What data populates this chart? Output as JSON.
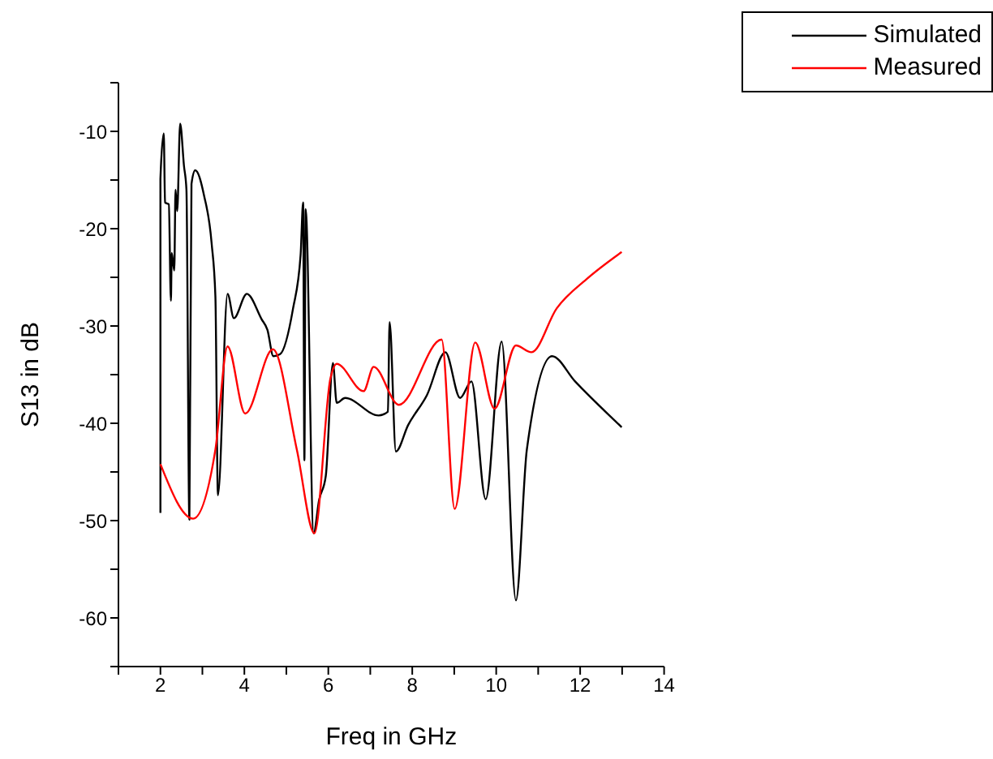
{
  "chart_data": {
    "type": "line",
    "xlabel": "Freq in GHz",
    "ylabel": "S13 in dB",
    "xlim": [
      1,
      14
    ],
    "ylim": [
      -65,
      -5
    ],
    "xticks": [
      {
        "value": 1,
        "label": null
      },
      2,
      {
        "value": 3,
        "label": null
      },
      4,
      {
        "value": 5,
        "label": null
      },
      6,
      {
        "value": 7,
        "label": null
      },
      8,
      {
        "value": 9,
        "label": null
      },
      10,
      {
        "value": 11,
        "label": null
      },
      12,
      {
        "value": 13,
        "label": null
      },
      14
    ],
    "yticks": [
      {
        "value": -65,
        "label": null
      },
      -60,
      {
        "value": -55,
        "label": null
      },
      -50,
      {
        "value": -45,
        "label": null
      },
      -40,
      {
        "value": -35,
        "label": null
      },
      -30,
      {
        "value": -25,
        "label": null
      },
      -20,
      {
        "value": -15,
        "label": null
      },
      -10,
      {
        "value": -5,
        "label": null
      }
    ],
    "legend": "top right",
    "series": [
      {
        "name": "Simulated",
        "color": "#000000",
        "x": [
          2,
          2,
          2.08,
          2.11,
          2.2,
          2.25,
          2.27,
          2.33,
          2.36,
          2.4,
          2.47,
          2.56,
          2.62,
          2.69,
          2.74,
          2.83,
          3.04,
          3.22,
          3.31,
          3.37,
          3.6,
          3.75,
          4.06,
          4.41,
          4.55,
          4.69,
          4.85,
          5.16,
          5.34,
          5.4,
          5.43,
          5.46,
          5.65,
          5.78,
          5.94,
          6.11,
          6.2,
          6.4,
          7.2,
          7.42,
          7.46,
          7.61,
          7.9,
          8.35,
          8.79,
          9.14,
          9.41,
          9.75,
          10.13,
          10.47,
          10.73,
          11.33,
          11.88,
          12.99
        ],
        "values": [
          -49.2,
          -14.9,
          -10.2,
          -17.3,
          -17.5,
          -27.4,
          -22.5,
          -24.3,
          -16,
          -18.2,
          -9.2,
          -13.5,
          -16,
          -49.9,
          -15.4,
          -14,
          -16.6,
          -21.5,
          -27,
          -47.4,
          -26.7,
          -29.2,
          -26.7,
          -29.3,
          -30.4,
          -33.1,
          -32.9,
          -28.2,
          -22.7,
          -17.3,
          -43.8,
          -18,
          -51.3,
          -47.9,
          -45.4,
          -33.8,
          -37.9,
          -37.4,
          -39.2,
          -38.8,
          -29.6,
          -42.9,
          -40.2,
          -37.1,
          -32.7,
          -37.4,
          -35.7,
          -47.8,
          -31.6,
          -58.2,
          -42.7,
          -33.1,
          -35.7,
          -40.4
        ]
      },
      {
        "name": "Measured",
        "color": "#ff0000",
        "x": [
          2,
          2.78,
          3.31,
          3.6,
          4.02,
          4.68,
          5.25,
          5.67,
          6.05,
          6.2,
          6.84,
          7.08,
          7.68,
          8.7,
          9.01,
          9.5,
          9.96,
          10.47,
          10.84,
          11.44,
          12.15,
          12.99
        ],
        "values": [
          -44.2,
          -49.8,
          -42.7,
          -32.1,
          -39,
          -32.4,
          -42.7,
          -51.3,
          -35.4,
          -33.9,
          -36.7,
          -34.2,
          -38.1,
          -31.4,
          -48.8,
          -31.7,
          -38.5,
          -32,
          -32.7,
          -28.2,
          -25.2,
          -22.4
        ]
      }
    ]
  }
}
